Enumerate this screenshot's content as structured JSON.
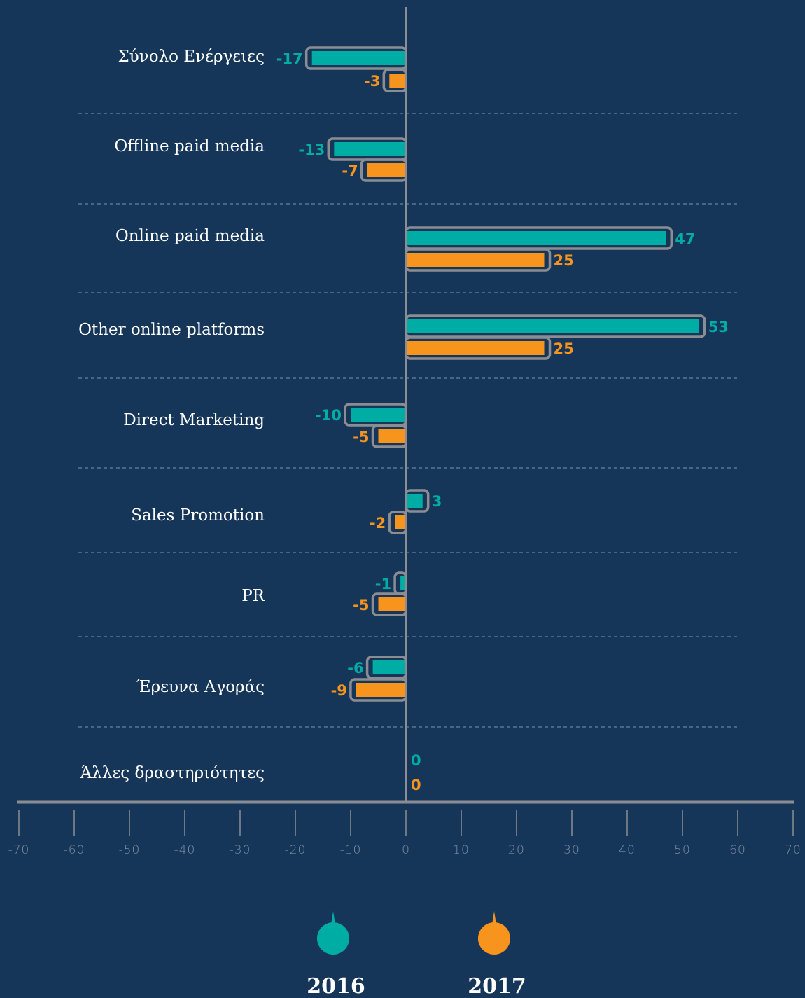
{
  "colors": {
    "background": "#163659",
    "series_2016": "#00ada5",
    "series_2017": "#f7941d",
    "bar_outline": "#8b8d93",
    "axis": "#8b8d93",
    "gridline": "#5a7393",
    "category_text": "#ffffff",
    "tick_text": "#7e8ea3"
  },
  "chart_data": {
    "type": "bar",
    "orientation": "horizontal",
    "categories": [
      "Σύνολο Ενέργειες",
      "Offline paid media",
      "Online paid media",
      "Other online platforms",
      "Direct Marketing",
      "Sales Promotion",
      "PR",
      "Έρευνα Αγοράς",
      "Άλλες δραστηριότητες"
    ],
    "series": [
      {
        "name": "2016",
        "values": [
          -17,
          -13,
          47,
          53,
          -10,
          3,
          -1,
          -6,
          0
        ]
      },
      {
        "name": "2017",
        "values": [
          -3,
          -7,
          25,
          25,
          -5,
          -2,
          -5,
          -9,
          0
        ]
      }
    ],
    "xlim": [
      -70,
      70
    ],
    "xticks": [
      -70,
      -60,
      -50,
      -40,
      -30,
      -20,
      -10,
      0,
      10,
      20,
      30,
      40,
      50,
      60,
      70
    ],
    "grid": "horizontal dashed separators between categories",
    "legend_position": "bottom-center",
    "title": "",
    "xlabel": "",
    "ylabel": ""
  }
}
